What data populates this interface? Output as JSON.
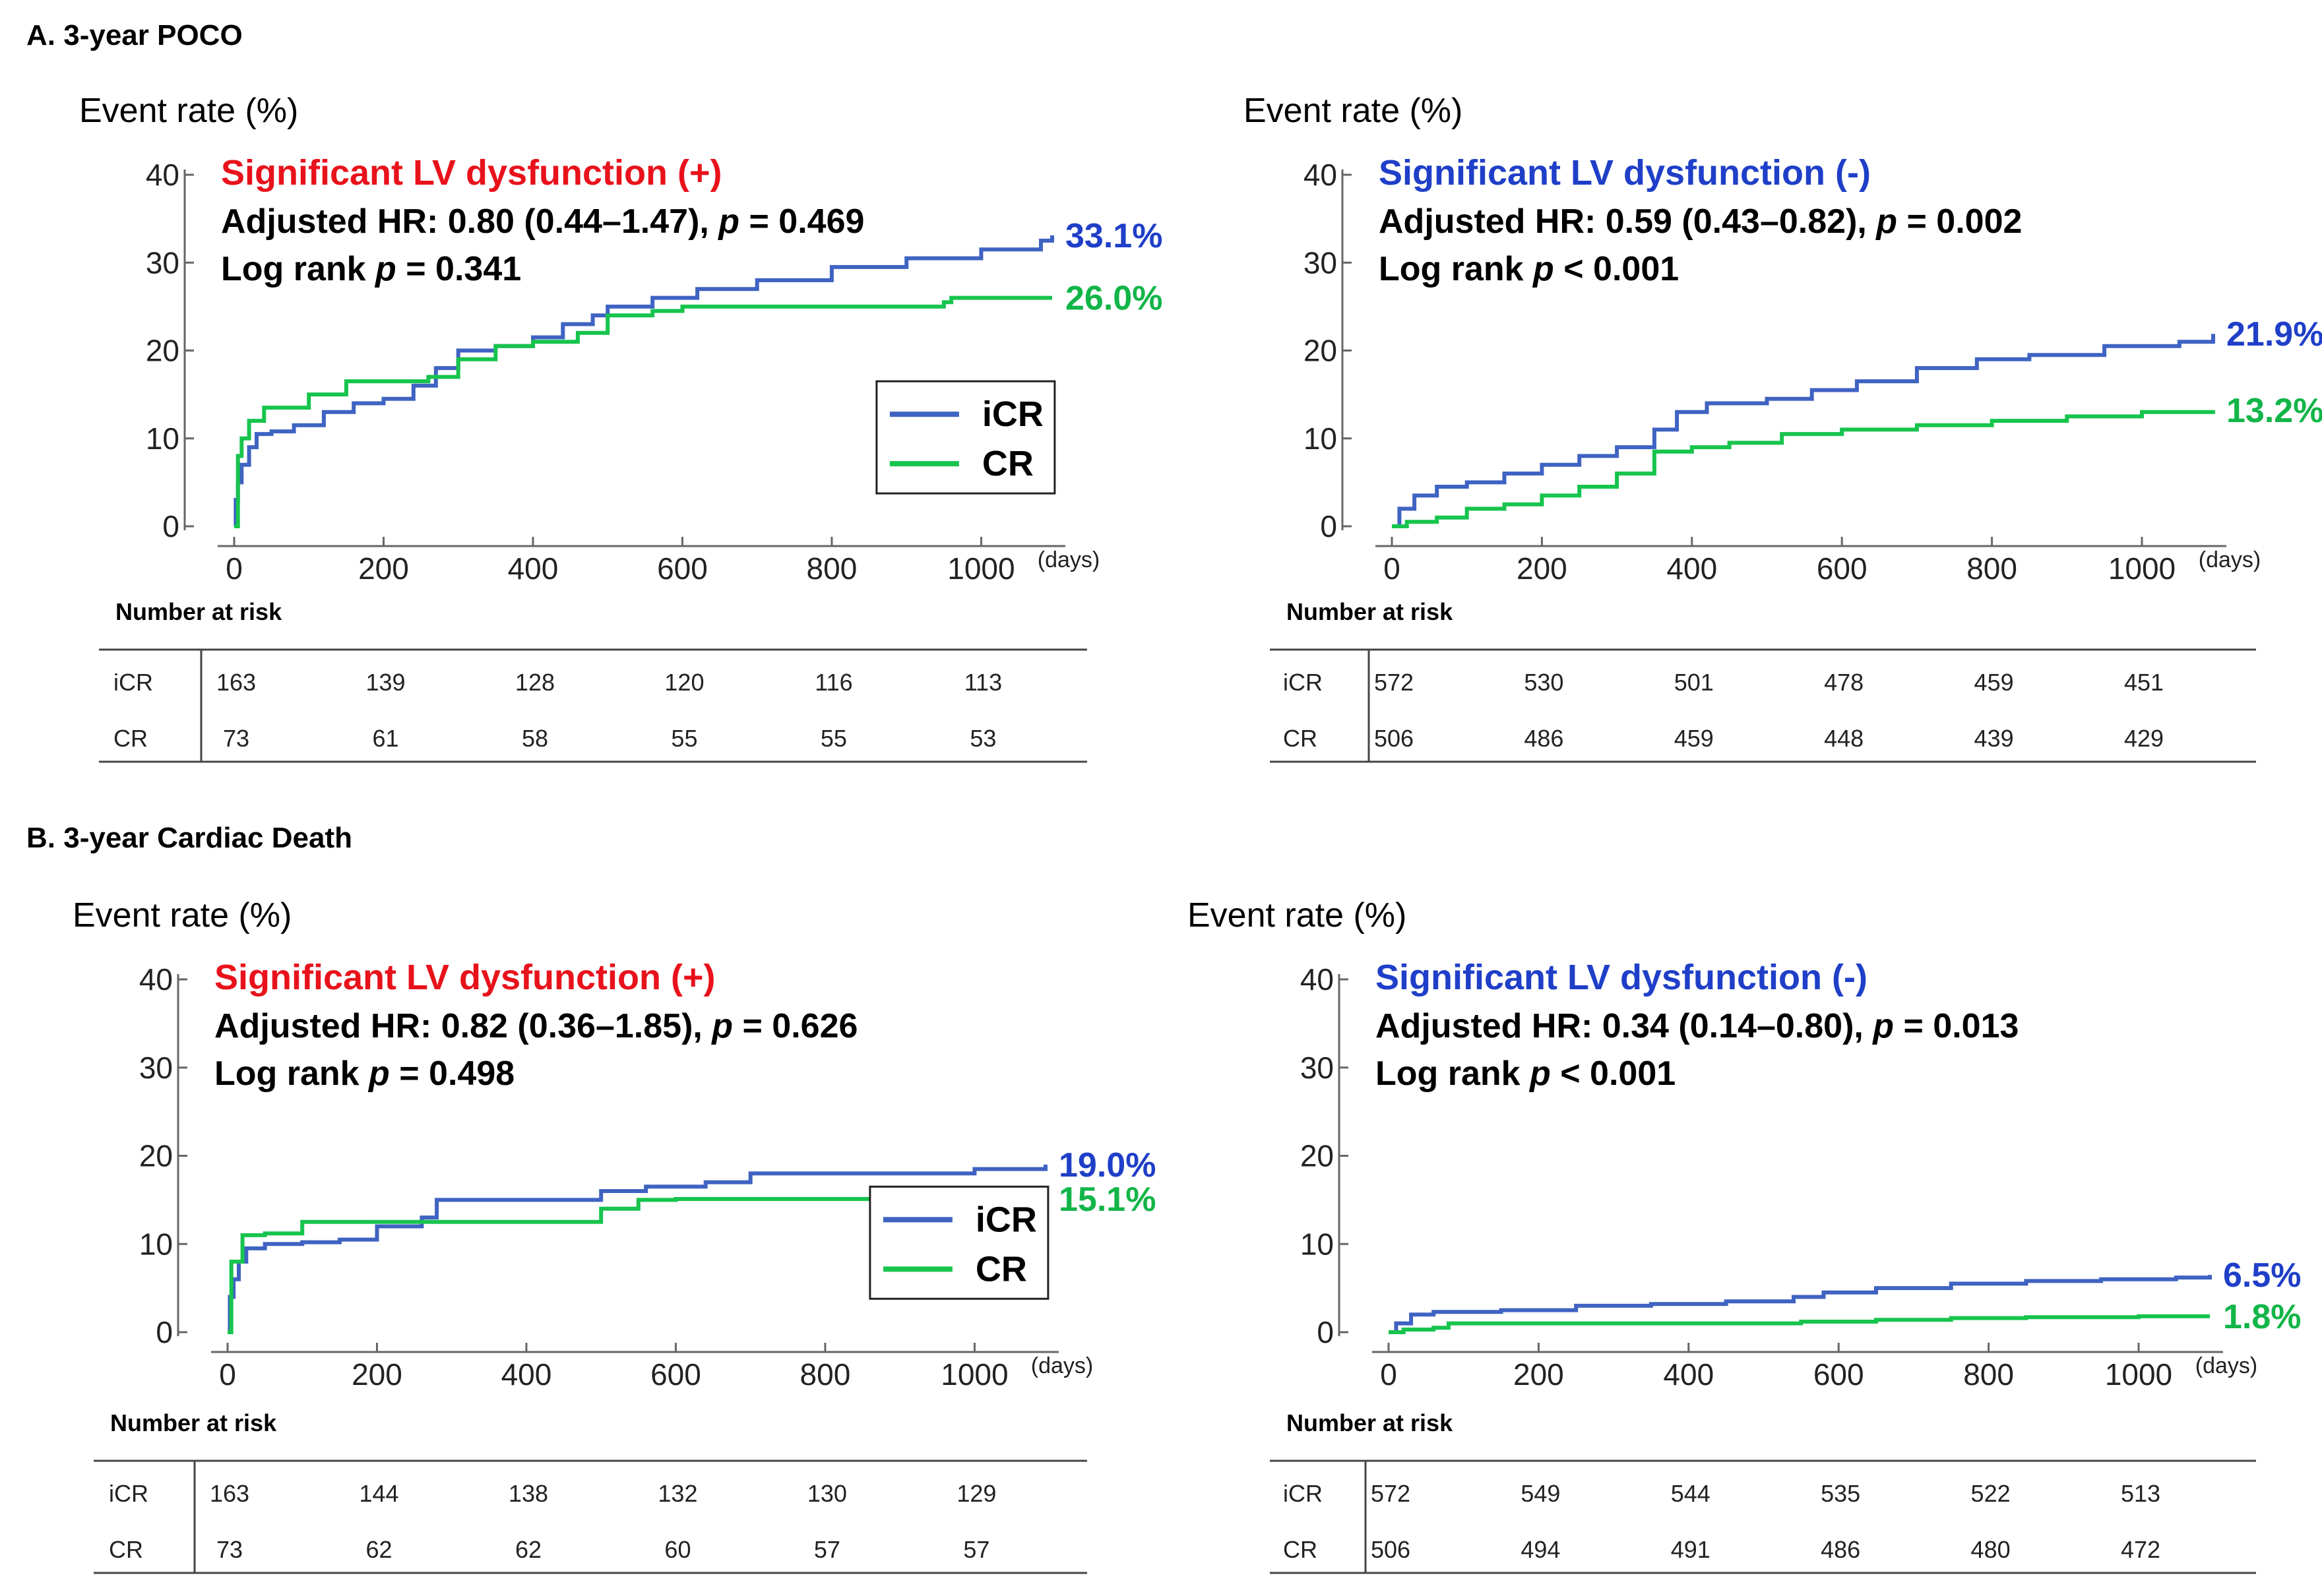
{
  "colors": {
    "icr": "#3f63c2",
    "cr": "#17c44d",
    "sub_pos": "#e8121b",
    "sub_neg": "#1f3fc8",
    "end_icr": "#1f3fc8",
    "end_cr": "#12b548"
  },
  "sections": [
    {
      "title": "A. 3-year POCO"
    },
    {
      "title": "B. 3-year Cardiac Death"
    }
  ],
  "chart_data": [
    {
      "type": "line",
      "section": "A. 3-year POCO",
      "ylabel": "Event rate (%)",
      "xlabel": "(days)",
      "ylim": [
        0,
        40
      ],
      "xlim": [
        0,
        1095
      ],
      "yticks": [
        "0",
        "10",
        "20",
        "30",
        "40"
      ],
      "xticks": [
        "0",
        "200",
        "400",
        "600",
        "800",
        "1000"
      ],
      "subtitle": "Significant LV dysfunction (+)",
      "subtitle_sign": "pos",
      "hr_line": {
        "prefix": "Adjusted HR: 0.80 (0.44–1.47), ",
        "p": "p",
        "suffix": " = 0.469"
      },
      "lr_line": {
        "prefix": "Log rank ",
        "p": "p",
        "suffix": " = 0.341"
      },
      "legend": [
        "iCR",
        "CR"
      ],
      "end_labels": [
        "33.1%",
        "26.0%"
      ],
      "series": [
        {
          "name": "iCR",
          "points": [
            [
              0,
              0
            ],
            [
              2,
              3
            ],
            [
              5,
              5
            ],
            [
              10,
              7
            ],
            [
              20,
              9
            ],
            [
              30,
              10.5
            ],
            [
              50,
              10.8
            ],
            [
              80,
              11.5
            ],
            [
              120,
              13
            ],
            [
              160,
              14
            ],
            [
              200,
              14.5
            ],
            [
              240,
              16
            ],
            [
              270,
              18
            ],
            [
              300,
              20
            ],
            [
              350,
              20.5
            ],
            [
              400,
              21.5
            ],
            [
              440,
              23
            ],
            [
              480,
              24
            ],
            [
              500,
              25
            ],
            [
              560,
              26
            ],
            [
              620,
              27
            ],
            [
              700,
              28
            ],
            [
              800,
              29.5
            ],
            [
              900,
              30.5
            ],
            [
              1000,
              31.5
            ],
            [
              1080,
              32.5
            ],
            [
              1095,
              33.1
            ]
          ]
        },
        {
          "name": "CR",
          "points": [
            [
              0,
              0
            ],
            [
              5,
              8
            ],
            [
              10,
              10
            ],
            [
              20,
              12
            ],
            [
              40,
              13.5
            ],
            [
              100,
              15
            ],
            [
              150,
              16.5
            ],
            [
              200,
              16.5
            ],
            [
              260,
              17
            ],
            [
              300,
              19
            ],
            [
              350,
              20.5
            ],
            [
              400,
              21
            ],
            [
              460,
              22
            ],
            [
              500,
              24
            ],
            [
              560,
              24.5
            ],
            [
              600,
              25
            ],
            [
              700,
              25
            ],
            [
              800,
              25
            ],
            [
              950,
              25.5
            ],
            [
              960,
              26
            ],
            [
              1095,
              26
            ]
          ]
        }
      ],
      "risk_title": "Number at risk",
      "risk_days": [
        "0",
        "200",
        "400",
        "600",
        "800",
        "1000"
      ],
      "risk": [
        {
          "group": "iCR",
          "values": [
            "163",
            "139",
            "128",
            "120",
            "116",
            "113"
          ]
        },
        {
          "group": "CR",
          "values": [
            "73",
            "61",
            "58",
            "55",
            "55",
            "53"
          ]
        }
      ]
    },
    {
      "type": "line",
      "section": "A. 3-year POCO",
      "ylabel": "Event rate (%)",
      "xlabel": "(days)",
      "ylim": [
        0,
        40
      ],
      "xlim": [
        0,
        1095
      ],
      "yticks": [
        "0",
        "10",
        "20",
        "30",
        "40"
      ],
      "xticks": [
        "0",
        "200",
        "400",
        "600",
        "800",
        "1000"
      ],
      "subtitle": "Significant LV dysfunction (-)",
      "subtitle_sign": "neg",
      "hr_line": {
        "prefix": "Adjusted HR: 0.59 (0.43–0.82), ",
        "p": "p",
        "suffix": " = 0.002"
      },
      "lr_line": {
        "prefix": "Log rank ",
        "p": "p",
        "suffix": " < 0.001"
      },
      "legend": [],
      "end_labels": [
        "21.9%",
        "13.2%"
      ],
      "series": [
        {
          "name": "iCR",
          "points": [
            [
              0,
              0
            ],
            [
              10,
              2
            ],
            [
              30,
              3.5
            ],
            [
              60,
              4.5
            ],
            [
              100,
              5
            ],
            [
              150,
              6
            ],
            [
              200,
              7
            ],
            [
              250,
              8
            ],
            [
              300,
              9
            ],
            [
              350,
              11
            ],
            [
              380,
              13
            ],
            [
              420,
              14
            ],
            [
              500,
              14.5
            ],
            [
              560,
              15.5
            ],
            [
              620,
              16.5
            ],
            [
              700,
              18
            ],
            [
              780,
              19
            ],
            [
              850,
              19.5
            ],
            [
              950,
              20.5
            ],
            [
              1050,
              21
            ],
            [
              1095,
              21.9
            ]
          ]
        },
        {
          "name": "CR",
          "points": [
            [
              0,
              0
            ],
            [
              20,
              0.5
            ],
            [
              60,
              1
            ],
            [
              100,
              2
            ],
            [
              150,
              2.5
            ],
            [
              200,
              3.5
            ],
            [
              250,
              4.5
            ],
            [
              300,
              6
            ],
            [
              350,
              8.5
            ],
            [
              400,
              9
            ],
            [
              450,
              9.5
            ],
            [
              520,
              10.5
            ],
            [
              600,
              11
            ],
            [
              700,
              11.5
            ],
            [
              800,
              12
            ],
            [
              900,
              12.5
            ],
            [
              1000,
              13
            ],
            [
              1095,
              13.2
            ]
          ]
        }
      ],
      "risk_title": "Number at risk",
      "risk_days": [
        "0",
        "200",
        "400",
        "600",
        "800",
        "1000"
      ],
      "risk": [
        {
          "group": "iCR",
          "values": [
            "572",
            "530",
            "501",
            "478",
            "459",
            "451"
          ]
        },
        {
          "group": "CR",
          "values": [
            "506",
            "486",
            "459",
            "448",
            "439",
            "429"
          ]
        }
      ]
    },
    {
      "type": "line",
      "section": "B. 3-year Cardiac Death",
      "ylabel": "Event rate (%)",
      "xlabel": "(days)",
      "ylim": [
        0,
        40
      ],
      "xlim": [
        0,
        1095
      ],
      "yticks": [
        "0",
        "10",
        "20",
        "30",
        "40"
      ],
      "xticks": [
        "0",
        "200",
        "400",
        "600",
        "800",
        "1000"
      ],
      "subtitle": "Significant LV dysfunction (+)",
      "subtitle_sign": "pos",
      "hr_line": {
        "prefix": "Adjusted HR: 0.82 (0.36–1.85), ",
        "p": "p",
        "suffix": " = 0.626"
      },
      "lr_line": {
        "prefix": "Log rank ",
        "p": "p",
        "suffix": " = 0.498"
      },
      "legend": [
        "iCR",
        "CR"
      ],
      "end_labels": [
        "19.0%",
        "15.1%"
      ],
      "series": [
        {
          "name": "iCR",
          "points": [
            [
              0,
              0
            ],
            [
              3,
              4
            ],
            [
              8,
              6
            ],
            [
              15,
              8
            ],
            [
              25,
              9.5
            ],
            [
              50,
              10
            ],
            [
              100,
              10.2
            ],
            [
              150,
              10.5
            ],
            [
              200,
              12
            ],
            [
              260,
              13
            ],
            [
              280,
              15
            ],
            [
              350,
              15
            ],
            [
              450,
              15
            ],
            [
              500,
              16
            ],
            [
              560,
              16.5
            ],
            [
              640,
              17
            ],
            [
              700,
              18
            ],
            [
              800,
              18
            ],
            [
              900,
              18
            ],
            [
              1000,
              18.5
            ],
            [
              1095,
              19
            ]
          ]
        },
        {
          "name": "CR",
          "points": [
            [
              0,
              0
            ],
            [
              5,
              8
            ],
            [
              20,
              11
            ],
            [
              50,
              11.2
            ],
            [
              100,
              12.5
            ],
            [
              150,
              12.5
            ],
            [
              250,
              12.5
            ],
            [
              300,
              12.5
            ],
            [
              400,
              12.5
            ],
            [
              480,
              12.5
            ],
            [
              500,
              14
            ],
            [
              550,
              15
            ],
            [
              600,
              15.1
            ],
            [
              800,
              15.1
            ],
            [
              1000,
              15.1
            ],
            [
              1095,
              15.1
            ]
          ]
        }
      ],
      "risk_title": "Number at risk",
      "risk_days": [
        "0",
        "200",
        "400",
        "600",
        "800",
        "1000"
      ],
      "risk": [
        {
          "group": "iCR",
          "values": [
            "163",
            "144",
            "138",
            "132",
            "130",
            "129"
          ]
        },
        {
          "group": "CR",
          "values": [
            "73",
            "62",
            "62",
            "60",
            "57",
            "57"
          ]
        }
      ]
    },
    {
      "type": "line",
      "section": "B. 3-year Cardiac Death",
      "ylabel": "Event rate (%)",
      "xlabel": "(days)",
      "ylim": [
        0,
        40
      ],
      "xlim": [
        0,
        1095
      ],
      "yticks": [
        "0",
        "10",
        "20",
        "30",
        "40"
      ],
      "xticks": [
        "0",
        "200",
        "400",
        "600",
        "800",
        "1000"
      ],
      "subtitle": "Significant LV dysfunction (-)",
      "subtitle_sign": "neg",
      "hr_line": {
        "prefix": "Adjusted HR: 0.34 (0.14–0.80), ",
        "p": "p",
        "suffix": " = 0.013"
      },
      "lr_line": {
        "prefix": "Log rank ",
        "p": "p",
        "suffix": " < 0.001"
      },
      "legend": [],
      "end_labels": [
        "6.5%",
        "1.8%"
      ],
      "series": [
        {
          "name": "iCR",
          "points": [
            [
              0,
              0
            ],
            [
              10,
              1
            ],
            [
              30,
              2
            ],
            [
              60,
              2.3
            ],
            [
              150,
              2.5
            ],
            [
              250,
              3
            ],
            [
              350,
              3.2
            ],
            [
              450,
              3.5
            ],
            [
              540,
              4
            ],
            [
              580,
              4.5
            ],
            [
              650,
              5
            ],
            [
              750,
              5.5
            ],
            [
              850,
              5.8
            ],
            [
              950,
              6
            ],
            [
              1050,
              6.2
            ],
            [
              1095,
              6.5
            ]
          ]
        },
        {
          "name": "CR",
          "points": [
            [
              0,
              0
            ],
            [
              20,
              0.3
            ],
            [
              60,
              0.5
            ],
            [
              80,
              1
            ],
            [
              200,
              1
            ],
            [
              400,
              1
            ],
            [
              550,
              1.2
            ],
            [
              650,
              1.4
            ],
            [
              750,
              1.6
            ],
            [
              850,
              1.7
            ],
            [
              1000,
              1.8
            ],
            [
              1095,
              1.8
            ]
          ]
        }
      ],
      "risk_title": "Number at risk",
      "risk_days": [
        "0",
        "200",
        "400",
        "600",
        "800",
        "1000"
      ],
      "risk": [
        {
          "group": "iCR",
          "values": [
            "572",
            "549",
            "544",
            "535",
            "522",
            "513"
          ]
        },
        {
          "group": "CR",
          "values": [
            "506",
            "494",
            "491",
            "486",
            "480",
            "472"
          ]
        }
      ]
    }
  ]
}
